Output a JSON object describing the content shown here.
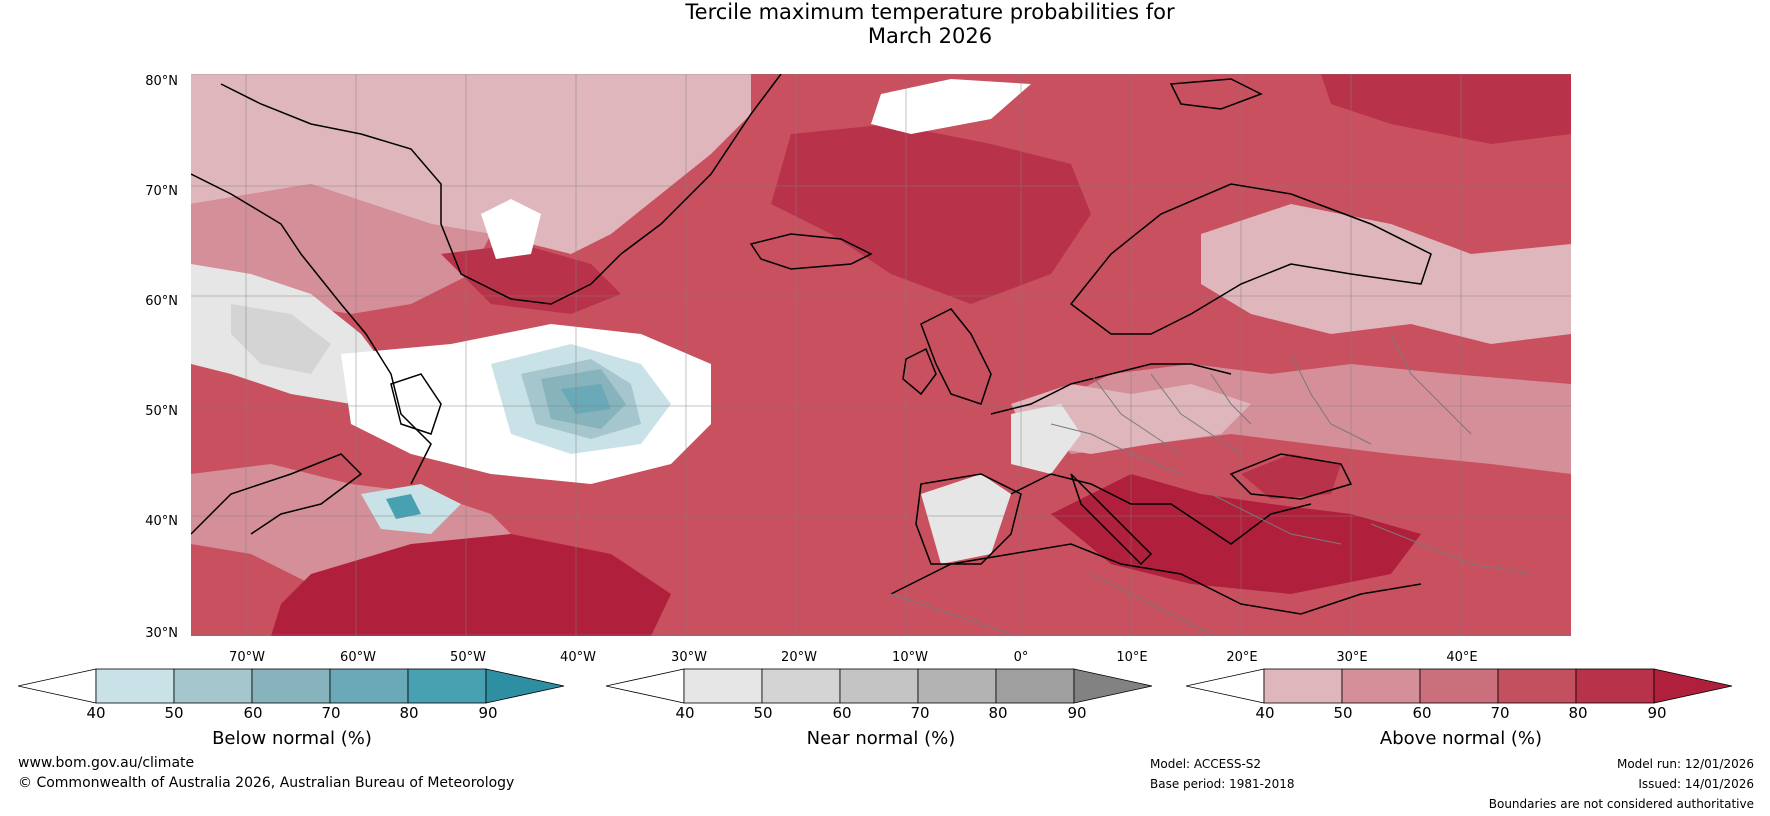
{
  "title_line1": "Tercile maximum temperature probabilities for",
  "title_line2": "March 2026",
  "latitude_labels": [
    "80°N",
    "70°N",
    "60°N",
    "50°N",
    "40°N",
    "30°N"
  ],
  "longitude_labels": [
    "70°W",
    "60°W",
    "50°W",
    "40°W",
    "30°W",
    "20°W",
    "10°W",
    "0°",
    "10°E",
    "20°E",
    "30°E",
    "40°E"
  ],
  "colorbars": [
    {
      "title": "Below normal (%)",
      "ticks": [
        "40",
        "50",
        "60",
        "70",
        "80",
        "90"
      ],
      "colors": [
        "#ffffff",
        "#c9e2e8",
        "#a5c6cc",
        "#87b3bc",
        "#6aa9b8",
        "#48a1b1",
        "#2e8fa3"
      ]
    },
    {
      "title": "Near normal (%)",
      "ticks": [
        "40",
        "50",
        "60",
        "70",
        "80",
        "90"
      ],
      "colors": [
        "#ffffff",
        "#e6e6e6",
        "#d4d4d4",
        "#c4c4c4",
        "#b3b3b3",
        "#9f9f9f",
        "#828282"
      ]
    },
    {
      "title": "Above normal (%)",
      "ticks": [
        "40",
        "50",
        "60",
        "70",
        "80",
        "90"
      ],
      "colors": [
        "#ffffff",
        "#e0b6bd",
        "#d48f99",
        "#ca6f7c",
        "#c2505f",
        "#b8334a",
        "#b0203c"
      ]
    }
  ],
  "footer": {
    "website": "www.bom.gov.au/climate",
    "copyright": "© Commonwealth of Australia 2026, Australian Bureau of Meteorology",
    "model": "Model: ACCESS-S2",
    "base_period": "Base period: 1981-2018",
    "model_run": "Model run: 12/01/2026",
    "issued": "Issued: 14/01/2026",
    "disclaimer": "Boundaries are not considered authoritative"
  }
}
